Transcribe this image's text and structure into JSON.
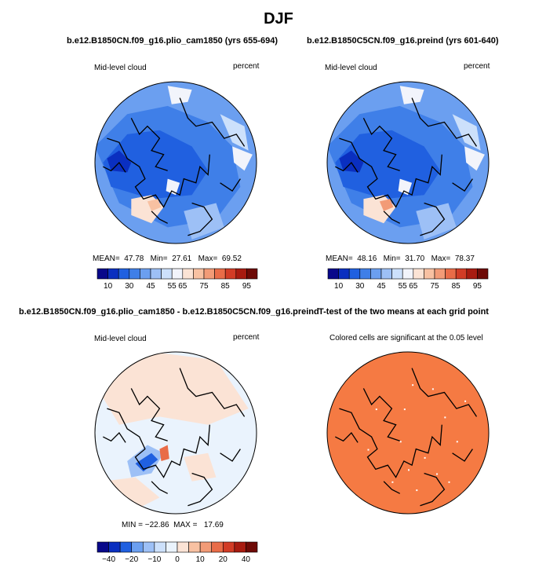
{
  "title": "DJF",
  "panels": [
    {
      "title": "b.e12.B1850CN.f09_g16.plio_cam1850 (yrs 655-694)",
      "left_label": "Mid-level cloud",
      "right_label": "percent",
      "stats": {
        "mean_label": "MEAN=",
        "mean": "47.78",
        "min_label": "Min=",
        "min": "27.61",
        "max_label": "Max=",
        "max": "69.52"
      }
    },
    {
      "title": "b.e12.B1850C5CN.f09_g16.preind (yrs 601-640)",
      "left_label": "Mid-level cloud",
      "right_label": "percent",
      "stats": {
        "mean_label": "MEAN=",
        "mean": "48.16",
        "min_label": "Min=",
        "min": "31.70",
        "max_label": "Max=",
        "max": "78.37"
      }
    },
    {
      "title": "b.e12.B1850CN.f09_g16.plio_cam1850 - b.e12.B1850C5CN.f09_g16.preind",
      "left_label": "Mid-level cloud",
      "right_label": "percent",
      "stats": {
        "min_label": "MIN =",
        "min": "−22.86",
        "max_label": "MAX =",
        "max": "17.69"
      }
    },
    {
      "title": "T-test of the two means at each grid point",
      "subtitle": "Colored cells are significant at the 0.05 level"
    }
  ],
  "chart_data": [
    {
      "type": "heatmap",
      "projection": "north-polar-stereographic",
      "variable": "Mid-level cloud",
      "units": "percent",
      "colorbar": {
        "levels": [
          "10",
          "30",
          "45",
          "55",
          "65",
          "75",
          "85",
          "95"
        ],
        "colors": [
          "#08088a",
          "#0a2fc0",
          "#2060e0",
          "#3f7fe8",
          "#6b9ff0",
          "#9dc0f6",
          "#cce0fb",
          "#f2f4fb",
          "#fbe3d5",
          "#f8c1a2",
          "#f29b77",
          "#e96c48",
          "#d23c26",
          "#a81b10",
          "#6e0a06"
        ]
      },
      "mean": 47.78,
      "min": 27.61,
      "max": 69.52
    },
    {
      "type": "heatmap",
      "projection": "north-polar-stereographic",
      "variable": "Mid-level cloud",
      "units": "percent",
      "colorbar": {
        "levels": [
          "10",
          "30",
          "45",
          "55",
          "65",
          "75",
          "85",
          "95"
        ],
        "colors": [
          "#08088a",
          "#0a2fc0",
          "#2060e0",
          "#3f7fe8",
          "#6b9ff0",
          "#9dc0f6",
          "#cce0fb",
          "#f2f4fb",
          "#fbe3d5",
          "#f8c1a2",
          "#f29b77",
          "#e96c48",
          "#d23c26",
          "#a81b10",
          "#6e0a06"
        ]
      },
      "mean": 48.16,
      "min": 31.7,
      "max": 78.37
    },
    {
      "type": "heatmap",
      "projection": "north-polar-stereographic",
      "variable": "Mid-level cloud difference",
      "units": "percent",
      "colorbar": {
        "levels": [
          "−40",
          "−20",
          "−10",
          "0",
          "10",
          "20",
          "40"
        ],
        "colors": [
          "#08088a",
          "#0a2fc0",
          "#2060e0",
          "#6b9ff0",
          "#9dc0f6",
          "#cce0fb",
          "#eaf3fd",
          "#fbe3d5",
          "#f8c1a2",
          "#f29b77",
          "#e96c48",
          "#d23c26",
          "#a81b10",
          "#6e0a06"
        ]
      },
      "min": -22.86,
      "max": 17.69
    },
    {
      "type": "heatmap",
      "projection": "north-polar-stereographic",
      "variable": "significance mask",
      "fill_color": "#f57a43"
    }
  ]
}
